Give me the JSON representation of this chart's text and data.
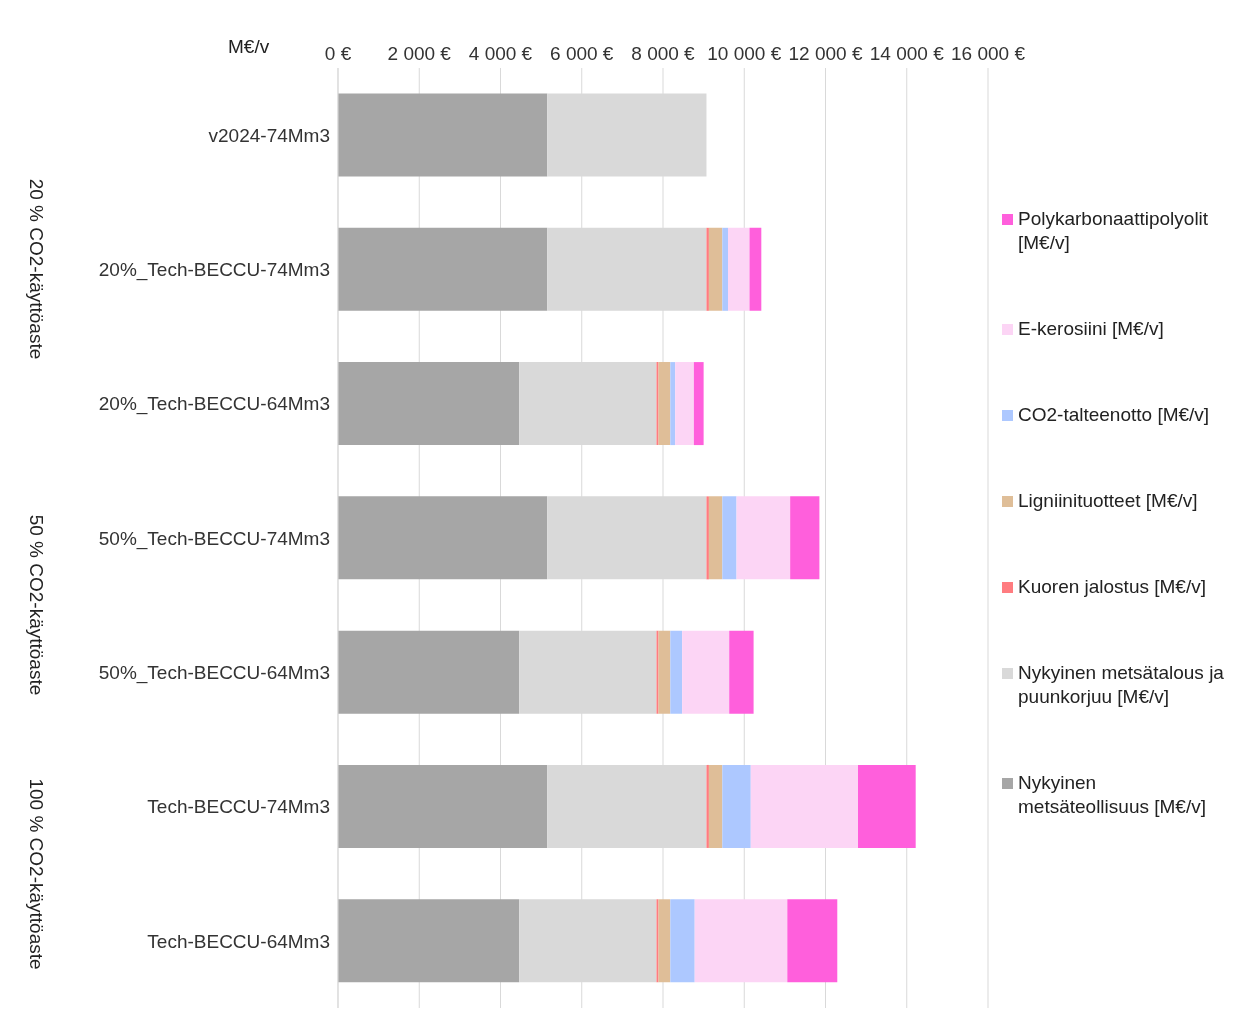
{
  "chart_data": {
    "type": "bar",
    "orientation": "horizontal",
    "stacked": true,
    "xlabel": "M€/v",
    "categories": [
      "v2024-74Mm3",
      "20%_Tech-BECCU-74Mm3",
      "20%_Tech-BECCU-64Mm3",
      "50%_Tech-BECCU-74Mm3",
      "50%_Tech-BECCU-64Mm3",
      "Tech-BECCU-74Mm3",
      "Tech-BECCU-64Mm3"
    ],
    "series": [
      {
        "name": "Nykyinen metsäteollisuus [M€/v]",
        "color": "#a6a6a6",
        "values": [
          5150,
          5150,
          4460,
          5150,
          4460,
          5150,
          4460
        ]
      },
      {
        "name": "Nykyinen metsätalous ja puunkorjuu [M€/v]",
        "color": "#d9d9d9",
        "values": [
          3920,
          3920,
          3380,
          3920,
          3380,
          3920,
          3380
        ]
      },
      {
        "name": "Kuoren jalostus [M€/v]",
        "color": "#ff7c80",
        "values": [
          null,
          60,
          50,
          60,
          50,
          60,
          50
        ]
      },
      {
        "name": "Ligniinituotteet [M€/v]",
        "color": "#dfbe98",
        "values": [
          null,
          330,
          290,
          330,
          290,
          330,
          290
        ]
      },
      {
        "name": "CO2-talteenotto [M€/v]",
        "color": "#adc8ff",
        "values": [
          null,
          140,
          120,
          350,
          290,
          700,
          600
        ]
      },
      {
        "name": "E-kerosiini [M€/v]",
        "color": "#fcd5f5",
        "values": [
          null,
          530,
          460,
          1320,
          1160,
          2640,
          2280
        ]
      },
      {
        "name": "Polykarbonaattipolyolit [M€/v]",
        "color": "#ff5fdc",
        "values": [
          null,
          290,
          240,
          720,
          600,
          1420,
          1230
        ]
      }
    ],
    "xlim": [
      0,
      16000
    ],
    "xticks": [
      {
        "value": 0,
        "label": "0 €"
      },
      {
        "value": 2000,
        "label": "2 000 €"
      },
      {
        "value": 4000,
        "label": "4 000 €"
      },
      {
        "value": 6000,
        "label": "6 000 €"
      },
      {
        "value": 8000,
        "label": "8 000 €"
      },
      {
        "value": 10000,
        "label": "10 000 €"
      },
      {
        "value": 12000,
        "label": "12 000 €"
      },
      {
        "value": 14000,
        "label": "14 000 €"
      },
      {
        "value": 16000,
        "label": "16 000 €"
      }
    ],
    "grid": "x",
    "legend": "right",
    "annotations": [
      "20 % CO2-käyttöaste",
      "50 % CO2-käyttöaste",
      "100 % CO2-käyttöaste"
    ]
  }
}
